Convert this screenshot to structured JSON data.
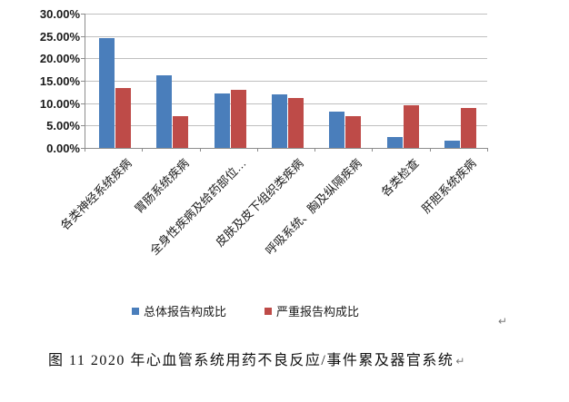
{
  "chart_data": {
    "type": "bar",
    "title": "",
    "categories": [
      "各类神经系统疾病",
      "胃肠系统疾病",
      "全身性疾病及给药部位…",
      "皮肤及皮下组织类疾病",
      "呼吸系统、胸及纵隔疾病",
      "各类检查",
      "肝胆系统疾病"
    ],
    "series": [
      {
        "name": "总体报告构成比",
        "color": "#4A7EBB",
        "values": [
          24.5,
          16.3,
          12.2,
          11.9,
          8.2,
          2.4,
          1.6
        ]
      },
      {
        "name": "严重报告构成比",
        "color": "#BE4B48",
        "values": [
          13.4,
          7.0,
          13.0,
          11.1,
          7.0,
          9.5,
          9.0
        ]
      }
    ],
    "xlabel": "",
    "ylabel": "",
    "ylim": [
      0,
      30
    ],
    "ytick_step": 5,
    "ytick_labels": [
      "30.00%",
      "25.00%",
      "20.00%",
      "15.00%",
      "10.00%",
      "5.00%",
      "0.00%"
    ],
    "grid": true,
    "legend_position": "bottom",
    "gridline_color": "#bfbfbf",
    "axis_color": "#8c8c8c"
  },
  "caption": {
    "text": "图 11  2020 年心血管系统用药不良反应/事件累及器官系统"
  },
  "marks": {
    "after_chart": "↵",
    "after_caption": "↵"
  }
}
